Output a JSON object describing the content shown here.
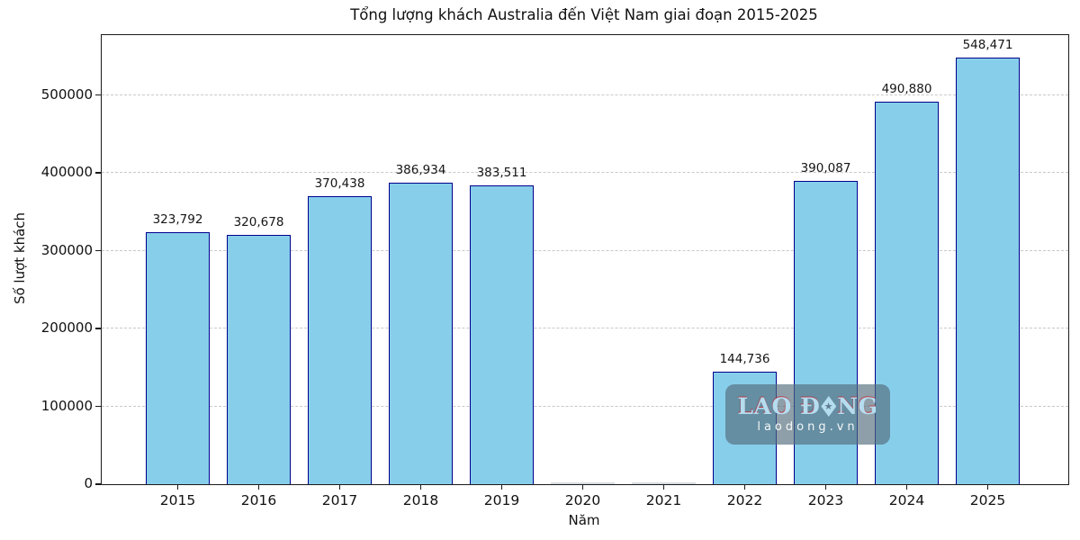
{
  "title": "Tổng lượng khách Australia đến Việt Nam giai đoạn 2015-2025",
  "axes": {
    "ylabel": "Số lượt khách",
    "xlabel": "Năm",
    "yticks": [
      "0",
      "100000",
      "200000",
      "300000",
      "400000",
      "500000"
    ]
  },
  "chart_data": {
    "type": "bar",
    "title": "Tổng lượng khách Australia đến Việt Nam giai đoạn 2015-2025",
    "xlabel": "Năm",
    "ylabel": "Số lượt khách",
    "categories": [
      "2015",
      "2016",
      "2017",
      "2018",
      "2019",
      "2020",
      "2021",
      "2022",
      "2023",
      "2024",
      "2025"
    ],
    "values": [
      323792,
      320678,
      370438,
      386934,
      383511,
      0,
      0,
      144736,
      390087,
      490880,
      548471
    ],
    "bar_labels": [
      "323,792",
      "320,678",
      "370,438",
      "386,934",
      "383,511",
      "",
      "",
      "144,736",
      "390,087",
      "490,880",
      "548,471"
    ],
    "ytick_values": [
      0,
      100000,
      200000,
      300000,
      400000,
      500000
    ],
    "ylim": [
      0,
      577000
    ],
    "grid": "horizontal dashed",
    "legend": "none",
    "bar_color": "#87CEEB",
    "bar_edge_color": "#00008B"
  },
  "watermark": {
    "brand_prefix": "LAO Đ",
    "brand_star": "★",
    "brand_suffix": "NG",
    "domain": "laodong.vn"
  }
}
